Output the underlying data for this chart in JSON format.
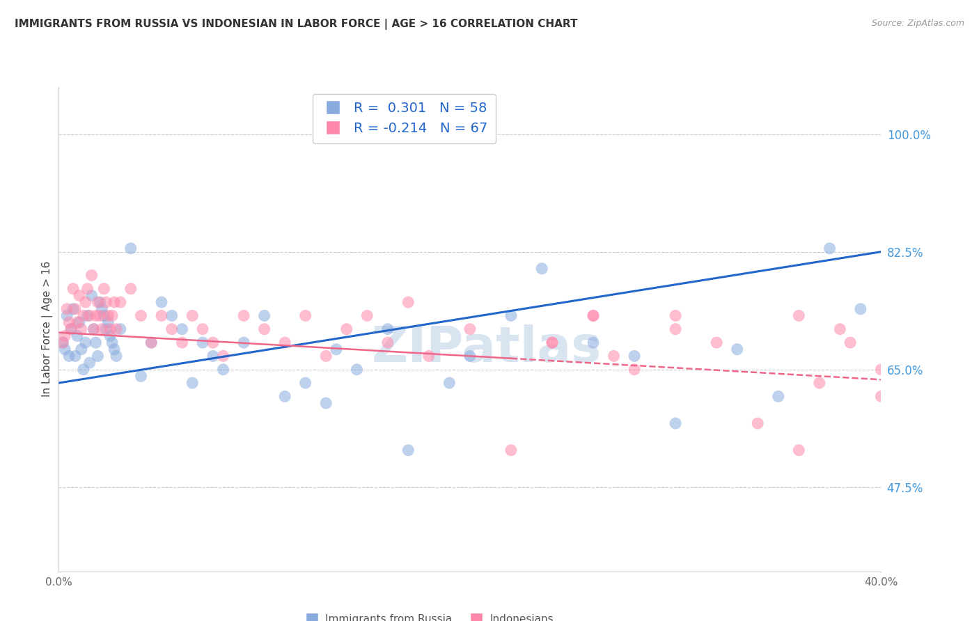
{
  "title": "IMMIGRANTS FROM RUSSIA VS INDONESIAN IN LABOR FORCE | AGE > 16 CORRELATION CHART",
  "source": "Source: ZipAtlas.com",
  "ylabel": "In Labor Force | Age > 16",
  "xlim": [
    0.0,
    40.0
  ],
  "ylim": [
    35.0,
    107.0
  ],
  "yticks": [
    47.5,
    65.0,
    82.5,
    100.0
  ],
  "russia_R": 0.301,
  "russia_N": 58,
  "indonesian_R": -0.214,
  "indonesian_N": 67,
  "blue_color": "#88AADD",
  "pink_color": "#FF88AA",
  "trend_blue_color": "#2266CC",
  "trend_pink_solid_color": "#EE6688",
  "trend_pink_dash_color": "#EE6688",
  "legend_label_russia": "Immigrants from Russia",
  "legend_label_indonesian": "Indonesians",
  "watermark": "ZIPatlas",
  "blue_trend_y0": 63.0,
  "blue_trend_y1": 82.5,
  "pink_trend_y0": 70.5,
  "pink_solid_x1": 22.0,
  "pink_trend_y1": 63.5,
  "russia_x": [
    0.2,
    0.3,
    0.4,
    0.5,
    0.6,
    0.7,
    0.8,
    0.9,
    1.0,
    1.1,
    1.2,
    1.3,
    1.4,
    1.5,
    1.6,
    1.7,
    1.8,
    1.9,
    2.0,
    2.1,
    2.2,
    2.3,
    2.4,
    2.5,
    2.6,
    2.7,
    2.8,
    3.0,
    3.5,
    4.0,
    4.5,
    5.0,
    5.5,
    6.0,
    6.5,
    7.0,
    7.5,
    8.0,
    9.0,
    10.0,
    11.0,
    12.0,
    13.0,
    14.5,
    16.0,
    17.0,
    19.0,
    20.0,
    22.0,
    23.5,
    26.0,
    28.0,
    30.0,
    33.0,
    35.0,
    37.5,
    13.5,
    39.0
  ],
  "russia_y": [
    69,
    68,
    73,
    67,
    71,
    74,
    67,
    70,
    72,
    68,
    65,
    69,
    73,
    66,
    76,
    71,
    69,
    67,
    75,
    74,
    73,
    71,
    72,
    70,
    69,
    68,
    67,
    71,
    83,
    64,
    69,
    75,
    73,
    71,
    63,
    69,
    67,
    65,
    69,
    73,
    61,
    63,
    60,
    65,
    71,
    53,
    63,
    67,
    73,
    80,
    69,
    67,
    57,
    68,
    61,
    83,
    68,
    74
  ],
  "indonesian_x": [
    0.2,
    0.3,
    0.4,
    0.5,
    0.6,
    0.7,
    0.8,
    0.9,
    1.0,
    1.1,
    1.2,
    1.3,
    1.4,
    1.5,
    1.6,
    1.7,
    1.8,
    1.9,
    2.0,
    2.1,
    2.2,
    2.3,
    2.4,
    2.5,
    2.6,
    2.7,
    2.8,
    3.0,
    3.5,
    4.0,
    4.5,
    5.0,
    5.5,
    6.0,
    6.5,
    7.0,
    7.5,
    8.0,
    9.0,
    10.0,
    11.0,
    12.0,
    13.0,
    14.0,
    15.0,
    16.0,
    17.0,
    18.0,
    20.0,
    22.0,
    24.0,
    26.0,
    27.0,
    28.0,
    30.0,
    32.0,
    34.0,
    36.0,
    38.0,
    40.0,
    24.0,
    26.0,
    30.0,
    36.0,
    37.0,
    38.5,
    40.0
  ],
  "indonesian_y": [
    69,
    70,
    74,
    72,
    71,
    77,
    74,
    72,
    76,
    71,
    73,
    75,
    77,
    73,
    79,
    71,
    73,
    75,
    73,
    71,
    77,
    75,
    73,
    71,
    73,
    75,
    71,
    75,
    77,
    73,
    69,
    73,
    71,
    69,
    73,
    71,
    69,
    67,
    73,
    71,
    69,
    73,
    67,
    71,
    73,
    69,
    75,
    67,
    71,
    53,
    69,
    73,
    67,
    65,
    71,
    69,
    57,
    73,
    71,
    61,
    69,
    73,
    73,
    53,
    63,
    69,
    65
  ]
}
